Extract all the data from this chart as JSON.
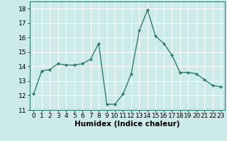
{
  "x": [
    0,
    1,
    2,
    3,
    4,
    5,
    6,
    7,
    8,
    9,
    10,
    11,
    12,
    13,
    14,
    15,
    16,
    17,
    18,
    19,
    20,
    21,
    22,
    23
  ],
  "y": [
    12.1,
    13.7,
    13.8,
    14.2,
    14.1,
    14.1,
    14.2,
    14.5,
    15.6,
    11.4,
    11.4,
    12.1,
    13.5,
    16.5,
    17.9,
    16.1,
    15.6,
    14.8,
    13.6,
    13.6,
    13.5,
    13.1,
    12.7,
    12.6
  ],
  "xlabel": "Humidex (Indice chaleur)",
  "ylim": [
    11,
    18.5
  ],
  "xlim": [
    -0.5,
    23.5
  ],
  "yticks": [
    11,
    12,
    13,
    14,
    15,
    16,
    17,
    18
  ],
  "xticks": [
    0,
    1,
    2,
    3,
    4,
    5,
    6,
    7,
    8,
    9,
    10,
    11,
    12,
    13,
    14,
    15,
    16,
    17,
    18,
    19,
    20,
    21,
    22,
    23
  ],
  "line_color": "#2e7d6e",
  "marker_color": "#2e7d6e",
  "bg_color": "#cceaea",
  "grid_color": "#ffffff",
  "tick_label_fontsize": 6.5,
  "xlabel_fontsize": 7.5,
  "marker": "D",
  "marker_size": 2.0,
  "line_width": 1.0
}
